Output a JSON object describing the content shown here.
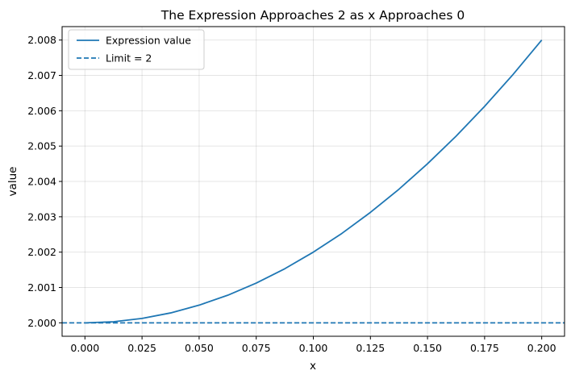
{
  "chart_data": {
    "type": "line",
    "title": "The Expression Approaches 2 as x Approaches 0",
    "xlabel": "x",
    "ylabel": "value",
    "xlim": [
      -0.01,
      0.21
    ],
    "ylim": [
      1.99962,
      2.00838
    ],
    "xticks": [
      0.0,
      0.025,
      0.05,
      0.075,
      0.1,
      0.125,
      0.15,
      0.175,
      0.2
    ],
    "xtick_labels": [
      "0.000",
      "0.025",
      "0.050",
      "0.075",
      "0.100",
      "0.125",
      "0.150",
      "0.175",
      "0.200"
    ],
    "yticks": [
      2.0,
      2.001,
      2.002,
      2.003,
      2.004,
      2.005,
      2.006,
      2.007,
      2.008
    ],
    "ytick_labels": [
      "2.000",
      "2.001",
      "2.002",
      "2.003",
      "2.004",
      "2.005",
      "2.006",
      "2.007",
      "2.008"
    ],
    "grid": true,
    "legend_position": "top-left",
    "series": [
      {
        "name": "Expression value",
        "style": "solid",
        "color": "#1f77b4",
        "x": [
          0.0,
          0.0125,
          0.025,
          0.0375,
          0.05,
          0.0625,
          0.075,
          0.0875,
          0.1,
          0.1125,
          0.125,
          0.1375,
          0.15,
          0.1625,
          0.175,
          0.1875,
          0.2
        ],
        "y": [
          2.0,
          2.00003,
          2.000125,
          2.00028,
          2.0005,
          2.00078,
          2.001125,
          2.00153,
          2.002,
          2.00253,
          2.003125,
          2.00378,
          2.0045,
          2.00528,
          2.006125,
          2.00703,
          2.008
        ]
      },
      {
        "name": "Limit = 2",
        "style": "dashed",
        "color": "#1f77b4",
        "y_constant": 2.0
      }
    ]
  }
}
